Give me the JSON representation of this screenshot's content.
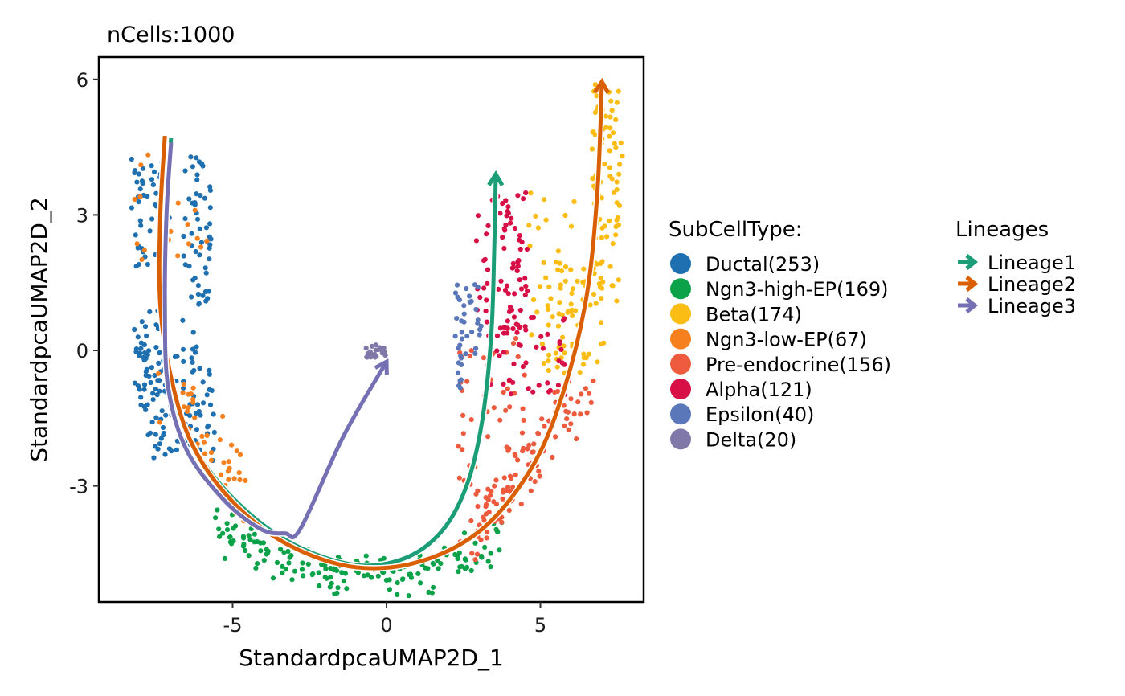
{
  "chart_data": {
    "type": "scatter",
    "title": "nCells:1000",
    "xlabel": "StandardpcaUMAP2D_1",
    "ylabel": "StandardpcaUMAP2D_2",
    "xlim": [
      -9.2,
      8.5
    ],
    "ylim": [
      -5.5,
      6.5
    ],
    "xticks": [
      -5,
      0,
      5
    ],
    "xtick_labels": [
      "-5",
      "0",
      "5"
    ],
    "yticks": [
      -3,
      0,
      3,
      6
    ],
    "ytick_labels": [
      "-3",
      "0",
      "3",
      "6"
    ],
    "grid": false,
    "legend_placement": "right",
    "series_legend_title": "SubCellType:",
    "series": [
      {
        "name": "Ductal",
        "count": 253,
        "label": "Ductal(253)",
        "color": "#1F70B0"
      },
      {
        "name": "Ngn3-high-EP",
        "count": 169,
        "label": "Ngn3-high-EP(169)",
        "color": "#0BA24A"
      },
      {
        "name": "Beta",
        "count": 174,
        "label": "Beta(174)",
        "color": "#FBBD14"
      },
      {
        "name": "Ngn3-low-EP",
        "count": 67,
        "label": "Ngn3-low-EP(67)",
        "color": "#F7801E"
      },
      {
        "name": "Pre-endocrine",
        "count": 156,
        "label": "Pre-endocrine(156)",
        "color": "#EE5A3D"
      },
      {
        "name": "Alpha",
        "count": 121,
        "label": "Alpha(121)",
        "color": "#D80F47"
      },
      {
        "name": "Epsilon",
        "count": 40,
        "label": "Epsilon(40)",
        "color": "#5A77BA"
      },
      {
        "name": "Delta",
        "count": 20,
        "label": "Delta(20)",
        "color": "#8078A8"
      }
    ],
    "lineage_legend_title": "Lineages",
    "lineages": [
      {
        "name": "Lineage1",
        "color": "#1B9E77",
        "path": [
          [
            -7.0,
            4.7
          ],
          [
            -7.2,
            3.0
          ],
          [
            -7.25,
            1.0
          ],
          [
            -7.0,
            -0.8
          ],
          [
            -6.2,
            -2.2
          ],
          [
            -4.8,
            -3.4
          ],
          [
            -3.0,
            -4.3
          ],
          [
            -1.0,
            -4.75
          ],
          [
            0.6,
            -4.6
          ],
          [
            1.8,
            -4.0
          ],
          [
            2.6,
            -3.0
          ],
          [
            3.1,
            -1.6
          ],
          [
            3.4,
            0.3
          ],
          [
            3.5,
            2.2
          ],
          [
            3.55,
            3.9
          ]
        ]
      },
      {
        "name": "Lineage2",
        "color": "#D95F02",
        "path": [
          [
            -7.2,
            4.75
          ],
          [
            -7.35,
            3.0
          ],
          [
            -7.35,
            1.0
          ],
          [
            -7.0,
            -0.6
          ],
          [
            -6.3,
            -2.1
          ],
          [
            -5.0,
            -3.35
          ],
          [
            -3.2,
            -4.3
          ],
          [
            -1.0,
            -4.8
          ],
          [
            1.2,
            -4.65
          ],
          [
            3.2,
            -3.9
          ],
          [
            4.8,
            -2.5
          ],
          [
            5.8,
            -0.8
          ],
          [
            6.5,
            1.2
          ],
          [
            6.85,
            3.5
          ],
          [
            7.0,
            5.95
          ]
        ]
      },
      {
        "name": "Lineage3",
        "color": "#7570B3",
        "path": [
          [
            -7.0,
            4.6
          ],
          [
            -7.15,
            3.0
          ],
          [
            -7.2,
            1.0
          ],
          [
            -7.1,
            -0.8
          ],
          [
            -6.5,
            -2.2
          ],
          [
            -5.3,
            -3.3
          ],
          [
            -4.1,
            -3.95
          ],
          [
            -3.3,
            -4.05
          ],
          [
            -2.8,
            -3.95
          ],
          [
            -1.4,
            -1.9
          ],
          [
            0.0,
            -0.25
          ]
        ]
      }
    ]
  }
}
